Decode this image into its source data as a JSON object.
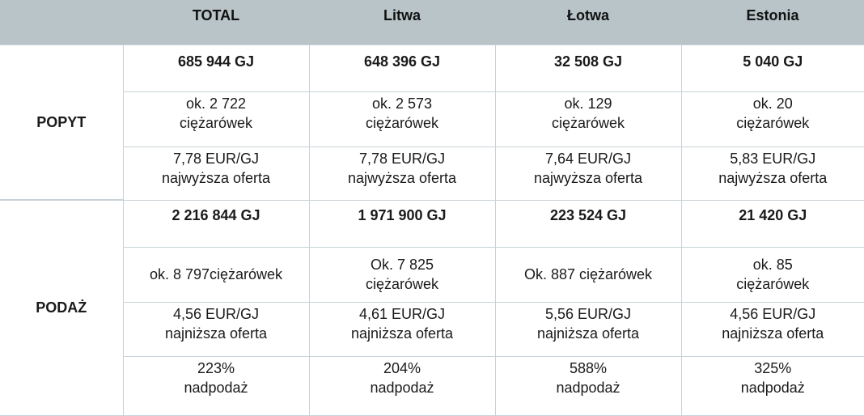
{
  "header": {
    "columns": [
      "",
      "TOTAL",
      "Litwa",
      "Łotwa",
      "Estonia"
    ]
  },
  "popyt": {
    "label": "POPYT",
    "amounts": [
      "685 944 GJ",
      "648 396 GJ",
      "32 508 GJ",
      "5 040 GJ"
    ],
    "trucks": [
      [
        "ok. 2 722",
        "ciężarówek"
      ],
      [
        "ok. 2 573",
        "ciężarówek"
      ],
      [
        "ok. 129",
        "ciężarówek"
      ],
      [
        "ok. 20",
        "ciężarówek"
      ]
    ],
    "prices": [
      [
        "7,78 EUR/GJ",
        "najwyższa oferta"
      ],
      [
        "7,78 EUR/GJ",
        "najwyższa oferta"
      ],
      [
        "7,64 EUR/GJ",
        "najwyższa oferta"
      ],
      [
        "5,83 EUR/GJ",
        "najwyższa oferta"
      ]
    ]
  },
  "podaz": {
    "label": "PODAŻ",
    "amounts": [
      "2 216 844 GJ",
      "1 971 900 GJ",
      "223 524 GJ",
      "21 420 GJ"
    ],
    "trucks": [
      [
        "ok. 8 797ciężarówek",
        ""
      ],
      [
        "Ok. 7 825",
        "ciężarówek"
      ],
      [
        "Ok. 887 ciężarówek",
        ""
      ],
      [
        "ok. 85",
        "ciężarówek"
      ]
    ],
    "prices": [
      [
        "4,56 EUR/GJ",
        "najniższa oferta"
      ],
      [
        "4,61 EUR/GJ",
        "najniższa oferta"
      ],
      [
        "5,56 EUR/GJ",
        "najniższa oferta"
      ],
      [
        "4,56 EUR/GJ",
        "najniższa oferta"
      ]
    ],
    "oversupply": [
      [
        "223%",
        "nadpodaż"
      ],
      [
        "204%",
        "nadpodaż"
      ],
      [
        "588%",
        "nadpodaż"
      ],
      [
        "325%",
        "nadpodaż"
      ]
    ]
  }
}
